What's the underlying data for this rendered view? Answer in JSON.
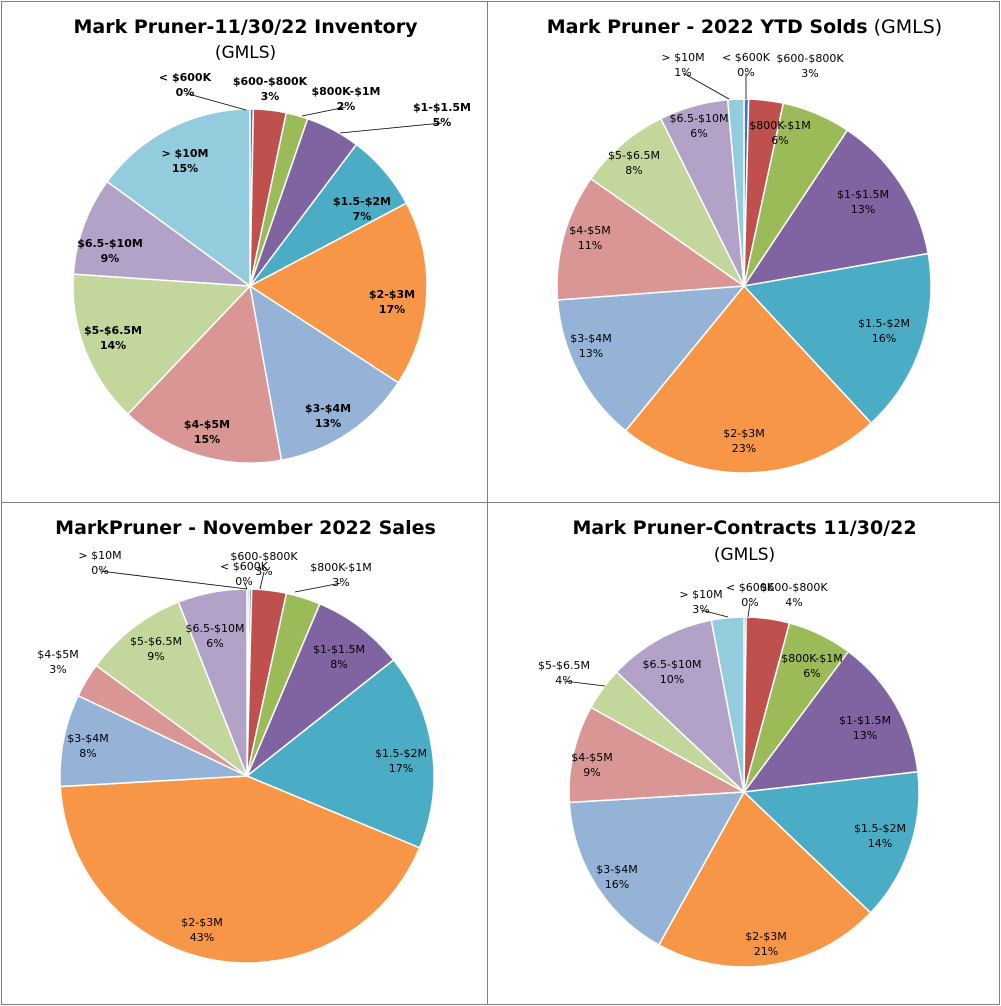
{
  "palette": {
    "< $600K": "#4472c4",
    "$600-$800K": "#c0504d",
    "$800K-$1M": "#9bbb59",
    "$1-$1.5M": "#8064a2",
    "$1.5-$2M": "#4bacc6",
    "$2-$3M": "#f79646",
    "$3-$4M": "#95b3d7",
    "$4-$5M": "#d99694",
    "$5-$6.5M": "#c3d69b",
    "$6.5-$10M": "#b3a2c7",
    "> $10M": "#93cddd"
  },
  "chart_data": [
    {
      "type": "pie",
      "title": "Mark Pruner-11/30/22 Inventory",
      "subtitle": "(GMLS)",
      "title_parts": [
        {
          "text": "Mark Pruner-11/30/22 Inventory",
          "bold": true
        }
      ],
      "label_style": "bold",
      "categories": [
        "< $600K",
        "$600-$800K",
        "$800K-$1M",
        "$1-$1.5M",
        "$1.5-$2M",
        "$2-$3M",
        "$3-$4M",
        "$4-$5M",
        "$5-$6.5M",
        "$6.5-$10M",
        "> $10M"
      ],
      "display_names": [
        "< $600K",
        "$600-$800K",
        "$800K-$1M",
        "$1-$1.5M",
        "$1.5-$2M",
        "$2-$3M",
        "$3-$4M",
        "$4-$5M",
        "$5-$6.5M",
        "$6.5-$10M",
        "> $10M"
      ],
      "values": [
        0.3,
        3,
        2,
        5,
        7,
        17,
        13,
        15,
        14,
        9,
        15
      ],
      "percent_labels": [
        "0%",
        "3%",
        "2%",
        "5%",
        "7%",
        "17%",
        "13%",
        "15%",
        "14%",
        "9%",
        "15%"
      ]
    },
    {
      "type": "pie",
      "title": "Mark Pruner - 2022 YTD Solds (GMLS)",
      "title_parts": [
        {
          "text": "Mark Pruner - 2022 YTD Solds",
          "bold": true
        },
        {
          "text": " (GMLS)",
          "bold": false
        }
      ],
      "label_style": "normal",
      "categories": [
        "< $600K",
        "$600-$800K",
        "$800K-$1M",
        "$1-$1.5M",
        "$1.5-$2M",
        "$2-$3M",
        "$3-$4M",
        "$4-$5M",
        "$5-$6.5M",
        "$6.5-$10M",
        "> $10M"
      ],
      "display_names": [
        "< $600K",
        "$600-$800K",
        "$800K-$1M",
        "$1-$1.5M",
        "$1.5-$2M",
        "$2-$3M",
        "$3-$4M",
        "$4-$5M",
        "$5-$6.5M",
        "$6.5-$10M",
        "> $10M"
      ],
      "values": [
        0.4,
        3,
        6,
        13,
        16,
        23,
        13,
        11,
        8,
        6,
        1.4
      ],
      "percent_labels": [
        "0%",
        "3%",
        "6%",
        "13%",
        "16%",
        "23%",
        "13%",
        "11%",
        "8%",
        "6%",
        "1%"
      ]
    },
    {
      "type": "pie",
      "title": "MarkPruner - November 2022 Sales",
      "title_parts": [
        {
          "text": "MarkPruner - November 2022 Sales",
          "bold": true
        }
      ],
      "label_style": "normal",
      "categories": [
        "> $10M",
        "< $600K",
        "$600-$800K",
        "$800K-$1M",
        "$1-$1.5M",
        "$1.5-$2M",
        "$2-$3M",
        "$3-$4M",
        "$4-$5M",
        "$5-$6.5M",
        "$6.5-$10M"
      ],
      "display_names": [
        "> $10M",
        "< $600K",
        "$600-$800K",
        "$800K-$1M",
        "$1-$1.5M",
        "$1.5-$2M",
        "$2-$3M",
        "$3-$4M",
        "$4-$5M",
        "$5-$6.5M",
        "$6.5-$10M"
      ],
      "values": [
        0.2,
        0.2,
        3,
        3,
        8,
        17,
        43,
        8,
        3,
        9,
        6
      ],
      "percent_labels": [
        "0%",
        "0%",
        "3%",
        "3%",
        "8%",
        "17%",
        "43%",
        "8%",
        "3%",
        "9%",
        "6%"
      ]
    },
    {
      "type": "pie",
      "title": "Mark Pruner-Contracts 11/30/22",
      "subtitle": "(GMLS)",
      "title_parts": [
        {
          "text": "Mark Pruner-Contracts 11/30/22",
          "bold": true
        }
      ],
      "label_style": "normal",
      "categories": [
        "< $600K",
        "$600-$800K",
        "$800K-$1M",
        "$1-$1.5M",
        "$1.5-$2M",
        "$2-$3M",
        "$3-$4M",
        "$4-$5M",
        "$5-$6.5M",
        "$6.5-$10M",
        "> $10M"
      ],
      "display_names": [
        "< $600K",
        "$600-$800K",
        "$800K-$1M",
        "$1-$1.5M",
        "$1.5-$2M",
        "$2-$3M",
        "$3-$4M",
        "$4-$5M",
        "$5-$6.5M",
        "$6.5-$10M",
        "> $10M"
      ],
      "values": [
        0.2,
        4,
        6,
        13,
        14,
        21,
        16,
        9,
        4,
        10,
        3
      ],
      "percent_labels": [
        "0%",
        "4%",
        "6%",
        "13%",
        "14%",
        "21%",
        "16%",
        "9%",
        "4%",
        "10%",
        "3%"
      ]
    }
  ]
}
